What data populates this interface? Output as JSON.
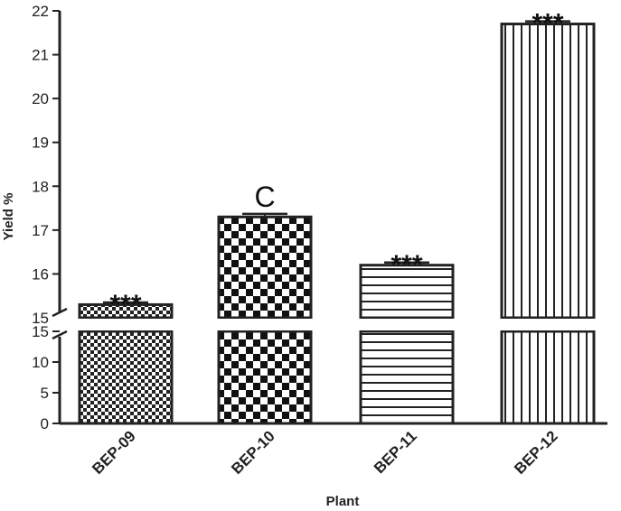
{
  "chart_data": {
    "type": "bar",
    "categories": [
      "BEP-09",
      "BEP-10",
      "BEP-11",
      "BEP-12"
    ],
    "values": [
      15.3,
      17.3,
      16.2,
      21.7
    ],
    "errors": [
      0.05,
      0.07,
      0.06,
      0.06
    ],
    "annotations": [
      "***",
      "C",
      "***",
      "***"
    ],
    "patterns": [
      "fine-checker",
      "coarse-checker",
      "horizontal-lines",
      "vertical-lines"
    ],
    "xlabel": "Plant",
    "ylabel": "Yield %",
    "axis_break": true,
    "lower_segment": {
      "ylim": [
        0,
        15
      ],
      "ticks": [
        "0",
        "5",
        "10",
        "15"
      ]
    },
    "upper_segment": {
      "ylim": [
        15,
        22
      ],
      "ticks": [
        "15",
        "16",
        "17",
        "18",
        "19",
        "20",
        "21",
        "22"
      ]
    },
    "grid": false,
    "legend": "none"
  }
}
